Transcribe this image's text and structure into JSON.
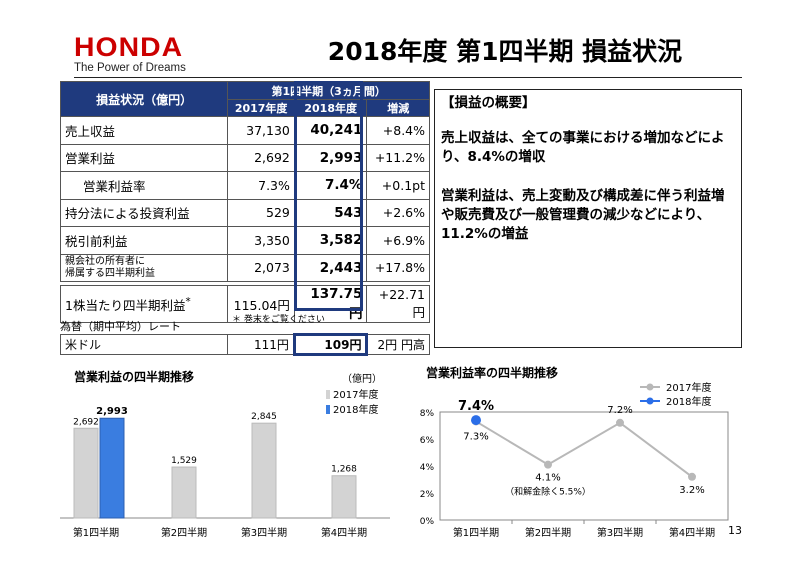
{
  "header": {
    "logo_text": "HONDA",
    "tagline": "The Power of Dreams",
    "title": "2018年度 第1四半期 損益状況"
  },
  "table": {
    "col_head": "損益状況（億円）",
    "group_head": "第1四半期（3ヵ月間）",
    "sub_heads": [
      "2017年度",
      "2018年度",
      "増減"
    ],
    "rows": [
      {
        "label": "売上収益",
        "v2017": "37,130",
        "v2018": "40,241",
        "change": "+8.4%"
      },
      {
        "label": "営業利益",
        "v2017": "2,692",
        "v2018": "2,993",
        "change": "+11.2%"
      },
      {
        "label": "営業利益率",
        "v2017": "7.3%",
        "v2018": "7.4%",
        "change": "+0.1pt"
      },
      {
        "label": "持分法による投資利益",
        "v2017": "529",
        "v2018": "543",
        "change": "+2.6%"
      },
      {
        "label": "税引前利益",
        "v2017": "3,350",
        "v2018": "3,582",
        "change": "+6.9%"
      },
      {
        "label": "親会社の所有者に帰属する四半期利益",
        "label_line1": "親会社の所有者に",
        "label_line2": "帰属する四半期利益",
        "v2017": "2,073",
        "v2018": "2,443",
        "change": "+17.8%"
      }
    ],
    "eps": {
      "label": "1株当たり四半期利益",
      "footnote_mark": "*",
      "v2017": "115.04円",
      "v2018": "137.75円",
      "change": "+22.71円"
    },
    "footnote": "＊ 巻末をご覧ください",
    "fx_label": "為替（期中平均）レート",
    "fx": {
      "label": "米ドル",
      "v2017": "111円",
      "v2018": "109円",
      "change": "2円 円高"
    }
  },
  "summary": {
    "heading": "【損益の概要】",
    "para1": "売上収益は、全ての事業における増加などにより、8.4%の増収",
    "para2": "営業利益は、売上変動及び構成差に伴う利益増や販売費及び一般管理費の減少などにより、11.2%の増益"
  },
  "bar_chart_title": "営業利益の四半期推移",
  "bar_chart_unit": "（億円）",
  "line_chart_title": "営業利益率の四半期推移",
  "page_number": "13",
  "colors": {
    "navy": "#1f3a7e",
    "honda_red": "#cc0000",
    "bar_2017": "#d3d3d3",
    "bar_2018": "#3a7de0",
    "line_2017": "#b8b8b8",
    "line_2018": "#2b6ee8"
  },
  "chart_data": [
    {
      "type": "bar",
      "title": "営業利益の四半期推移",
      "ylabel": "（億円）",
      "categories": [
        "第1四半期",
        "第2四半期",
        "第3四半期",
        "第4四半期"
      ],
      "series": [
        {
          "name": "2017年度",
          "values": [
            2692,
            1529,
            2845,
            1268
          ],
          "labels": [
            "2,692",
            "1,529",
            "2,845",
            "1,268"
          ]
        },
        {
          "name": "2018年度",
          "values": [
            2993,
            null,
            null,
            null
          ],
          "labels": [
            "2,993",
            "",
            "",
            ""
          ]
        }
      ],
      "ylim": [
        0,
        3000
      ],
      "legend": "top-right"
    },
    {
      "type": "line",
      "title": "営業利益率の四半期推移",
      "categories": [
        "第1四半期",
        "第2四半期",
        "第3四半期",
        "第4四半期"
      ],
      "series": [
        {
          "name": "2017年度",
          "values": [
            7.3,
            4.1,
            7.2,
            3.2
          ],
          "labels": [
            "7.3%",
            "4.1%",
            "7.2%",
            "3.2%"
          ]
        },
        {
          "name": "2018年度",
          "values": [
            7.4,
            null,
            null,
            null
          ],
          "labels": [
            "7.4%",
            "",
            "",
            ""
          ]
        }
      ],
      "yticks": [
        "0%",
        "2%",
        "4%",
        "6%",
        "8%"
      ],
      "ylim": [
        0,
        8
      ],
      "annotation": "（和解金除く5.5%）",
      "legend": "top-right"
    }
  ]
}
